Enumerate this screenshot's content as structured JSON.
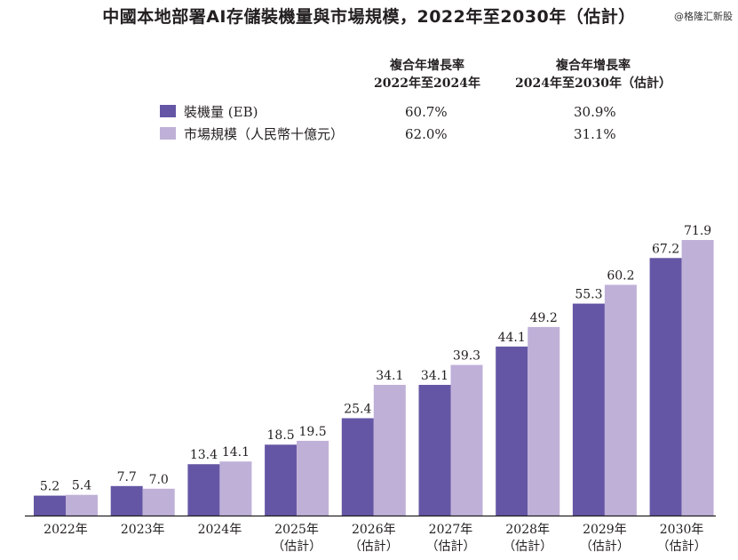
{
  "title": "中國本地部署AI存儲裝機量與市場規模，2022年至2030年（估計）",
  "watermark": "@格隆汇新股",
  "legend": {
    "col1_header": [
      "複合年增長率",
      "2022年至2024年"
    ],
    "col2_header": [
      "複合年增長率",
      "2024年至2030年（估計）"
    ],
    "rows": [
      {
        "label": "裝機量 (EB)",
        "cagr1": "60.7%",
        "cagr2": "30.9%",
        "color": "#6556a5"
      },
      {
        "label": "市場規模（人民幣十億元）",
        "cagr1": "62.0%",
        "cagr2": "31.1%",
        "color": "#bfb0d8"
      }
    ]
  },
  "chart_data": {
    "type": "bar",
    "title": "中國本地部署AI存儲裝機量與市場規模，2022年至2030年（估計）",
    "categories": [
      [
        "2022年"
      ],
      [
        "2023年"
      ],
      [
        "2024年"
      ],
      [
        "2025年",
        "（估計）"
      ],
      [
        "2026年",
        "（估計）"
      ],
      [
        "2027年",
        "（估計）"
      ],
      [
        "2028年",
        "（估計）"
      ],
      [
        "2029年",
        "（估計）"
      ],
      [
        "2030年",
        "（估計）"
      ]
    ],
    "series": [
      {
        "name": "裝機量 (EB)",
        "color": "#6556a5",
        "values": [
          5.2,
          7.7,
          13.4,
          18.5,
          25.4,
          34.1,
          44.1,
          55.3,
          67.2
        ],
        "labels": [
          "5.2",
          "7.7",
          "13.4",
          "18.5",
          "25.4",
          "34.1",
          "44.1",
          "55.3",
          "67.2"
        ]
      },
      {
        "name": "市場規模（人民幣十億元）",
        "color": "#bfb0d8",
        "values": [
          5.4,
          7.0,
          14.1,
          19.5,
          34.1,
          39.3,
          49.2,
          60.2,
          71.9
        ],
        "labels": [
          "5.4",
          "7.0",
          "14.1",
          "19.5",
          "34.1",
          "39.3",
          "49.2",
          "60.2",
          "71.9"
        ]
      }
    ],
    "xlabel": "",
    "ylabel": "",
    "ylim": [
      0,
      75
    ],
    "grid": false,
    "legend_position": "top"
  }
}
